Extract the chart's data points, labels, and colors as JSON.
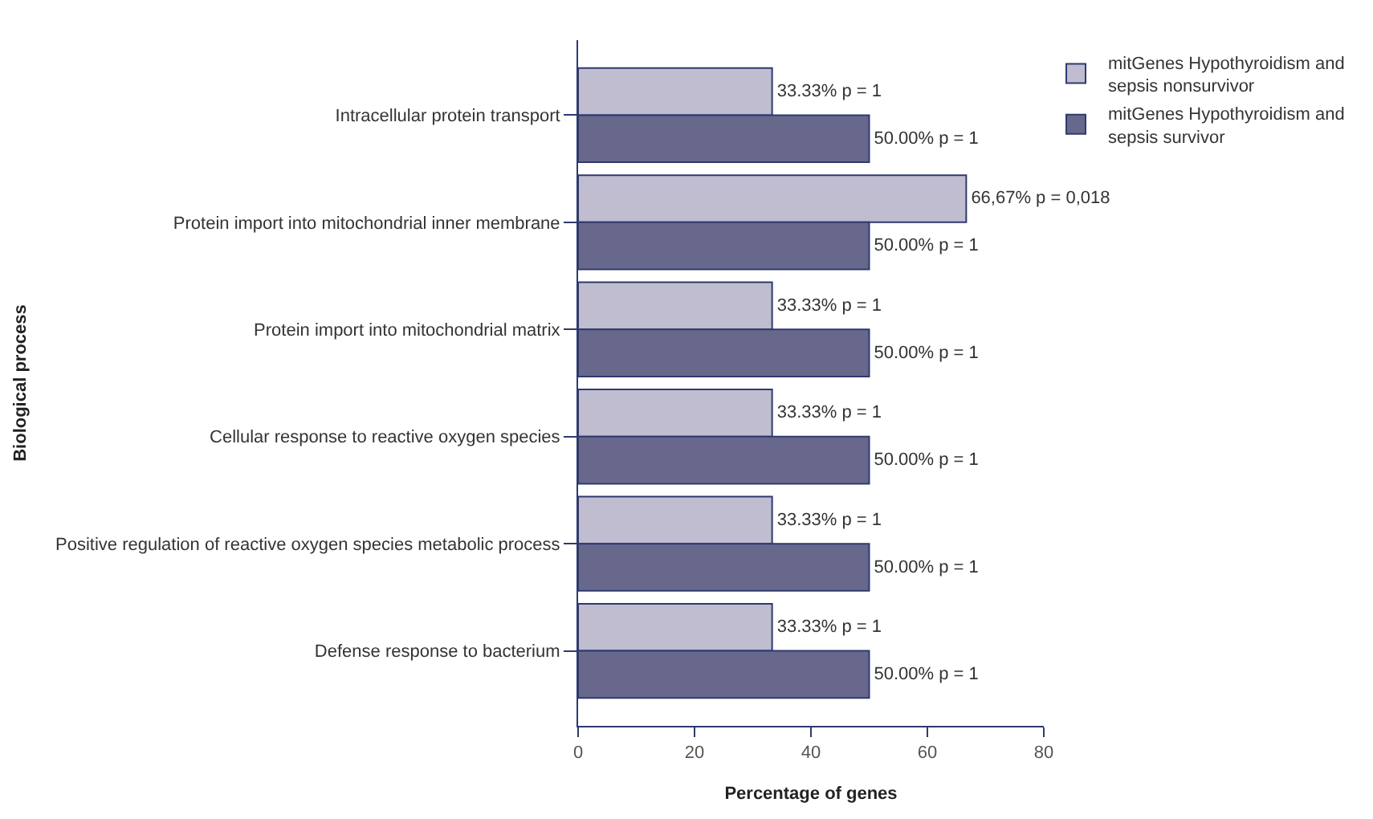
{
  "chart_data": {
    "type": "bar",
    "orientation": "horizontal",
    "xlabel": "Percentage of genes",
    "ylabel": "Biological process",
    "categories": [
      "Intracellular protein transport",
      "Protein import into mitochondrial inner membrane",
      "Protein import into mitochondrial matrix",
      "Cellular response to reactive oxygen species",
      "Positive regulation of reactive oxygen species metabolic process",
      "Defense response to bacterium"
    ],
    "series": [
      {
        "name": "mitGenes Hypothyroidism and sepsis nonsurvivor",
        "color": "#c0bdd1",
        "values": [
          33.33,
          66.67,
          33.33,
          33.33,
          33.33,
          33.33
        ],
        "value_labels": [
          "33.33% p = 1",
          "66,67% p = 0,018",
          "33.33% p = 1",
          "33.33% p = 1",
          "33.33% p = 1",
          "33.33% p = 1"
        ]
      },
      {
        "name": "mitGenes Hypothyroidism and sepsis survivor",
        "color": "#68688c",
        "values": [
          50.0,
          50.0,
          50.0,
          50.0,
          50.0,
          50.0
        ],
        "value_labels": [
          "50.00% p = 1",
          "50.00% p = 1",
          "50.00% p = 1",
          "50.00% p = 1",
          "50.00% p = 1",
          "50.00% p = 1"
        ]
      }
    ],
    "xlim": [
      0,
      80
    ],
    "xticks": [
      0,
      20,
      40,
      60,
      80
    ],
    "legend": "top right"
  }
}
